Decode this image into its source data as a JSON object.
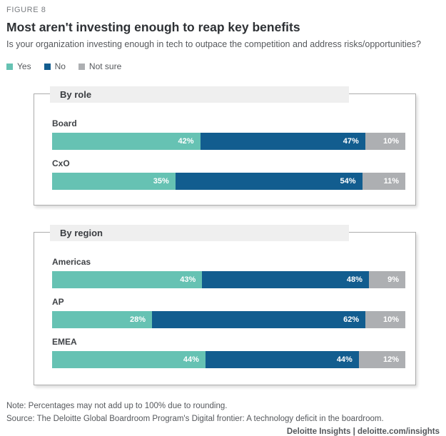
{
  "figure_label": "FIGURE 8",
  "title": "Most aren't investing enough to reap key benefits",
  "subtitle": "Is your organization investing enough in tech to outpace the competition and address risks/opportunities?",
  "colors": {
    "yes": "#66c2b3",
    "no": "#125d8f",
    "not_sure": "#adafb2",
    "banner_bg": "#efefef",
    "panel_border": "#adadad"
  },
  "chart_data": {
    "type": "bar",
    "orientation": "horizontal",
    "stacked": true,
    "value_suffix": "%",
    "title": "Most aren't investing enough to reap key benefits",
    "subtitle": "Is your organization investing enough in tech to outpace the competition and address risks/opportunities?",
    "legend_position": "top-left",
    "legend": [
      {
        "label": "Yes",
        "color": "#66c2b3"
      },
      {
        "label": "No",
        "color": "#125d8f"
      },
      {
        "label": "Not sure",
        "color": "#adafb2"
      }
    ],
    "series_names": [
      "Yes",
      "No",
      "Not sure"
    ],
    "groups": [
      {
        "title": "By role",
        "categories": [
          "Board",
          "CxO"
        ],
        "rows": [
          {
            "category": "Board",
            "values": [
              42,
              47,
              10
            ]
          },
          {
            "category": "CxO",
            "values": [
              35,
              54,
              11
            ]
          }
        ]
      },
      {
        "title": "By region",
        "categories": [
          "Americas",
          "AP",
          "EMEA"
        ],
        "rows": [
          {
            "category": "Americas",
            "values": [
              43,
              48,
              9
            ]
          },
          {
            "category": "AP",
            "values": [
              28,
              62,
              10
            ]
          },
          {
            "category": "EMEA",
            "values": [
              44,
              44,
              12
            ]
          }
        ]
      }
    ]
  },
  "footer": {
    "note": "Note: Percentages may not add up to 100% due to rounding.",
    "source": "Source: The Deloitte Global Boardroom Program's Digital frontier: A technology deficit in the boardroom.",
    "attribution": "Deloitte Insights | deloitte.com/insights"
  }
}
